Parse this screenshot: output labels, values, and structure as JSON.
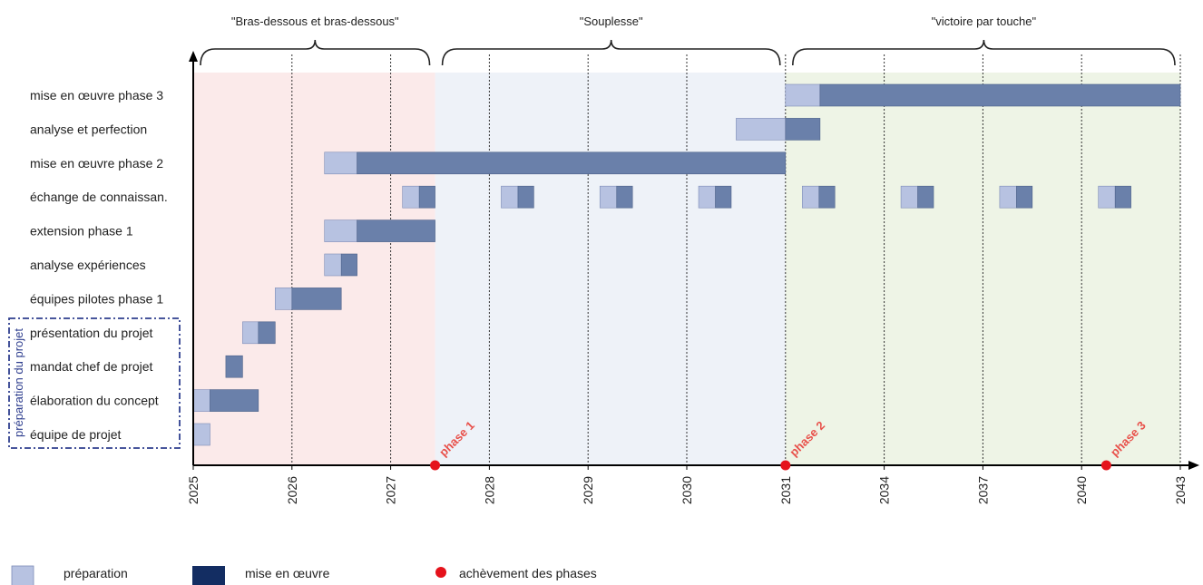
{
  "colors": {
    "preparation": "#b7c2e1",
    "implementation": "#6a80aa",
    "legend_implementation": "#132d62",
    "milestone": "#e5121b",
    "era_1": "#fbeaea",
    "era_2": "#eef2f8",
    "era_3": "#eef4e6"
  },
  "side_label": "préparation du projet",
  "chart_data": {
    "type": "gantt",
    "x_ticks": [
      "2025",
      "2026",
      "2027",
      "2028",
      "2029",
      "2030",
      "2031",
      "2034",
      "2037",
      "2040",
      "2043"
    ],
    "eras": [
      {
        "label": "\"Bras-dessous et bras-dessous\"",
        "start": 0,
        "end": 2.45
      },
      {
        "label": "\"Souplesse\"",
        "start": 2.45,
        "end": 6.0
      },
      {
        "label": "\"victoire par touche\"",
        "start": 6.0,
        "end": 10.0
      }
    ],
    "tasks": [
      {
        "name": "mise en œuvre phase 3",
        "segments": [
          {
            "start": 6.0,
            "prep_end": 6.35,
            "end": 10.0
          }
        ]
      },
      {
        "name": "analyse et perfection",
        "segments": [
          {
            "start": 5.5,
            "prep_end": 6.0,
            "end": 6.35
          }
        ]
      },
      {
        "name": "mise en œuvre phase 2",
        "segments": [
          {
            "start": 1.33,
            "prep_end": 1.66,
            "end": 6.0
          }
        ]
      },
      {
        "name": "échange de connaissan.",
        "segments": [
          {
            "start": 2.12,
            "prep_end": 2.29,
            "end": 2.45
          },
          {
            "start": 3.12,
            "prep_end": 3.29,
            "end": 3.45
          },
          {
            "start": 4.12,
            "prep_end": 4.29,
            "end": 4.45
          },
          {
            "start": 5.12,
            "prep_end": 5.29,
            "end": 5.45
          },
          {
            "start": 6.17,
            "prep_end": 6.34,
            "end": 6.5
          },
          {
            "start": 7.17,
            "prep_end": 7.34,
            "end": 7.5
          },
          {
            "start": 8.17,
            "prep_end": 8.34,
            "end": 8.5
          },
          {
            "start": 9.17,
            "prep_end": 9.34,
            "end": 9.5
          }
        ]
      },
      {
        "name": "extension phase 1",
        "segments": [
          {
            "start": 1.33,
            "prep_end": 1.66,
            "end": 2.45
          }
        ]
      },
      {
        "name": "analyse expériences",
        "segments": [
          {
            "start": 1.33,
            "prep_end": 1.5,
            "end": 1.66
          }
        ]
      },
      {
        "name": "équipes pilotes phase 1",
        "segments": [
          {
            "start": 0.83,
            "prep_end": 1.0,
            "end": 1.5
          }
        ]
      },
      {
        "name": "présentation du projet",
        "segments": [
          {
            "start": 0.5,
            "prep_end": 0.66,
            "end": 0.83
          }
        ]
      },
      {
        "name": "mandat chef de projet",
        "segments": [
          {
            "start": 0.33,
            "prep_end": 0.33,
            "end": 0.5
          }
        ]
      },
      {
        "name": "élaboration du concept",
        "segments": [
          {
            "start": 0.0,
            "prep_end": 0.17,
            "end": 0.66
          }
        ]
      },
      {
        "name": "équipe de projet",
        "segments": [
          {
            "start": 0.0,
            "prep_end": 0.17,
            "end": 0.17
          }
        ]
      }
    ],
    "milestones": [
      {
        "label": "phase 1",
        "x": 2.45
      },
      {
        "label": "phase 2",
        "x": 6.0
      },
      {
        "label": "phase 3",
        "x": 9.25
      }
    ],
    "legend": [
      {
        "label": "préparation",
        "kind": "preparation"
      },
      {
        "label": "mise en œuvre",
        "kind": "implementation"
      },
      {
        "label": "achèvement des phases",
        "kind": "milestone"
      }
    ]
  }
}
